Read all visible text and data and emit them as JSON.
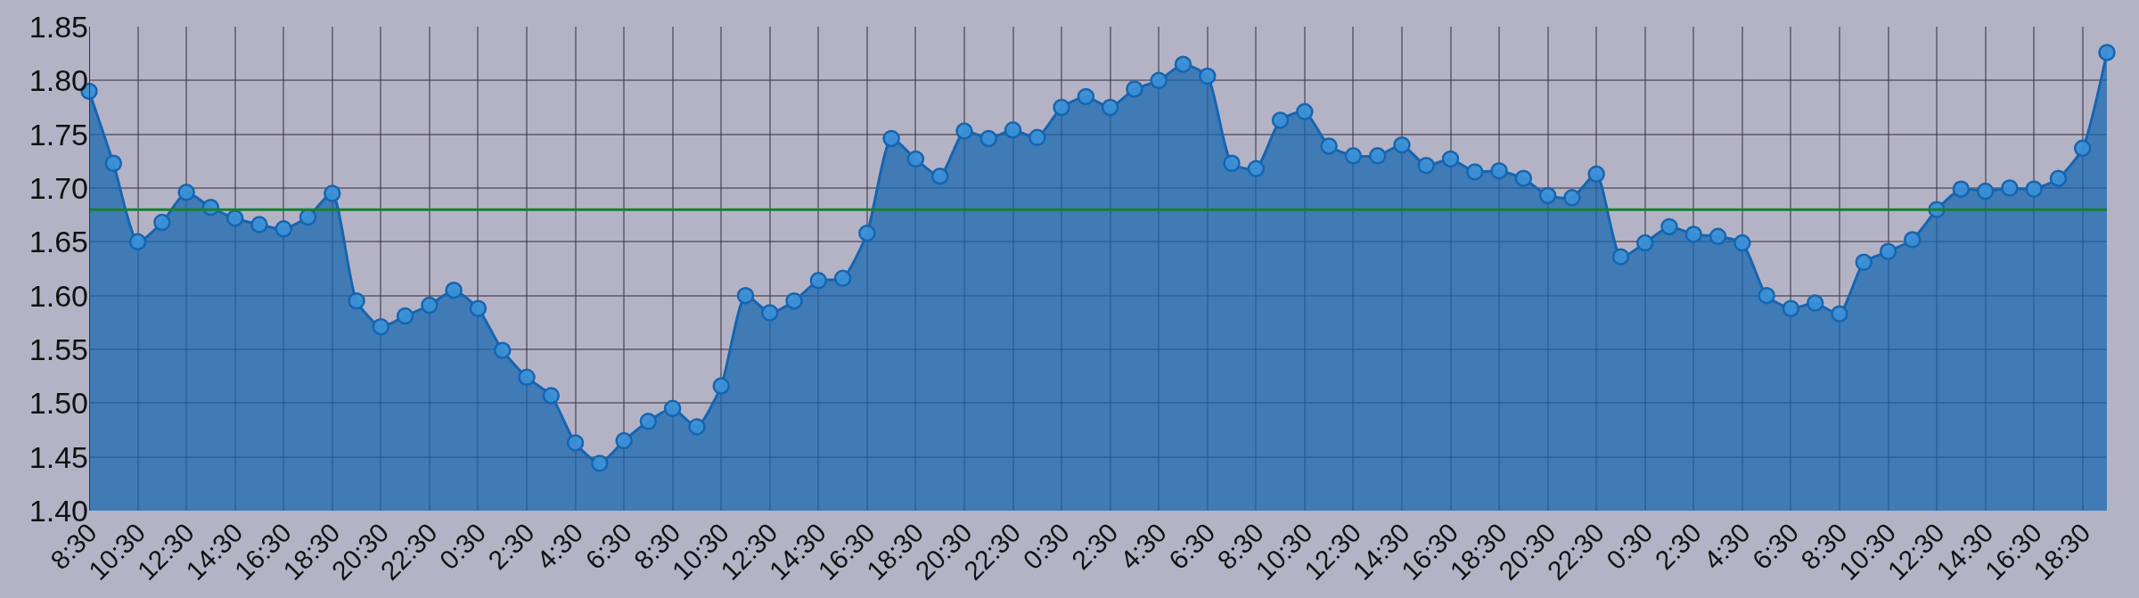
{
  "chart_data": {
    "type": "area",
    "categories": [
      "8:30",
      null,
      "10:30",
      null,
      "12:30",
      null,
      "14:30",
      null,
      "16:30",
      null,
      "18:30",
      null,
      "20:30",
      null,
      "22:30",
      null,
      "0:30",
      null,
      "2:30",
      null,
      "4:30",
      null,
      "6:30",
      null,
      "8:30",
      null,
      "10:30",
      null,
      "12:30",
      null,
      "14:30",
      null,
      "16:30",
      null,
      "18:30",
      null,
      "20:30",
      null,
      "22:30",
      null,
      "0:30",
      null,
      "2:30",
      null,
      "4:30",
      null,
      "6:30",
      null,
      "8:30",
      null,
      "10:30",
      null,
      "12:30",
      null,
      "14:30",
      null,
      "16:30",
      null,
      "18:30",
      null,
      "20:30",
      null,
      "22:30",
      null,
      "0:30",
      null,
      "2:30",
      null,
      "4:30",
      null,
      "6:30",
      null,
      "8:30",
      null,
      "10:30",
      null,
      "12:30",
      null,
      "14:30",
      null,
      "16:30",
      null,
      "18:30",
      null
    ],
    "series": [
      {
        "color": "#1565b0",
        "values": [
          1.79,
          1.723,
          1.65,
          1.668,
          1.696,
          1.682,
          1.672,
          1.666,
          1.662,
          1.673,
          1.695,
          1.595,
          1.571,
          1.581,
          1.591,
          1.605,
          1.588,
          1.549,
          1.524,
          1.507,
          1.463,
          1.444,
          1.465,
          1.483,
          1.495,
          1.478,
          1.516,
          1.6,
          1.584,
          1.595,
          1.614,
          1.616,
          1.658,
          1.746,
          1.727,
          1.711,
          1.753,
          1.746,
          1.754,
          1.747,
          1.775,
          1.785,
          1.775,
          1.792,
          1.8,
          1.815,
          1.804,
          1.723,
          1.718,
          1.763,
          1.771,
          1.739,
          1.73,
          1.73,
          1.74,
          1.721,
          1.727,
          1.715,
          1.716,
          1.709,
          1.693,
          1.691,
          1.713,
          1.636,
          1.649,
          1.664,
          1.657,
          1.655,
          1.649,
          1.6,
          1.588,
          1.593,
          1.583,
          1.631,
          1.641,
          1.652,
          1.68,
          1.699,
          1.697,
          1.7,
          1.699,
          1.709,
          1.737,
          1.826
        ]
      },
      {
        "type": "line",
        "marker": "none",
        "color": "#17802e",
        "values": [
          1.68,
          1.68,
          1.68,
          1.68,
          1.68,
          1.68,
          1.68,
          1.68,
          1.68,
          1.68,
          1.68,
          1.68,
          1.68,
          1.68,
          1.68,
          1.68,
          1.68,
          1.68,
          1.68,
          1.68,
          1.68,
          1.68,
          1.68,
          1.68,
          1.68,
          1.68,
          1.68,
          1.68,
          1.68,
          1.68,
          1.68,
          1.68,
          1.68,
          1.68,
          1.68,
          1.68,
          1.68,
          1.68,
          1.68,
          1.68,
          1.68,
          1.68,
          1.68,
          1.68,
          1.68,
          1.68,
          1.68,
          1.68,
          1.68,
          1.68,
          1.68,
          1.68,
          1.68,
          1.68,
          1.68,
          1.68,
          1.68,
          1.68,
          1.68,
          1.68,
          1.68,
          1.68,
          1.68,
          1.68,
          1.68,
          1.68,
          1.68,
          1.68,
          1.68,
          1.68,
          1.68,
          1.68,
          1.68,
          1.68,
          1.68,
          1.68,
          1.68,
          1.68,
          1.68,
          1.68,
          1.68,
          1.68,
          1.68,
          1.68
        ]
      }
    ],
    "ylim": [
      1.4,
      1.85
    ],
    "yticks": [
      {
        "value": 1.4,
        "label": "1.40"
      },
      1.45,
      {
        "value": 1.5,
        "label": "1.50"
      },
      1.55,
      {
        "value": 1.6,
        "label": "1.60"
      },
      1.65,
      {
        "value": 1.7,
        "label": "1.70"
      },
      1.75,
      {
        "value": 1.8,
        "label": "1.80"
      },
      1.85
    ],
    "grid": true,
    "marker": "circle",
    "line_style": "solid"
  }
}
